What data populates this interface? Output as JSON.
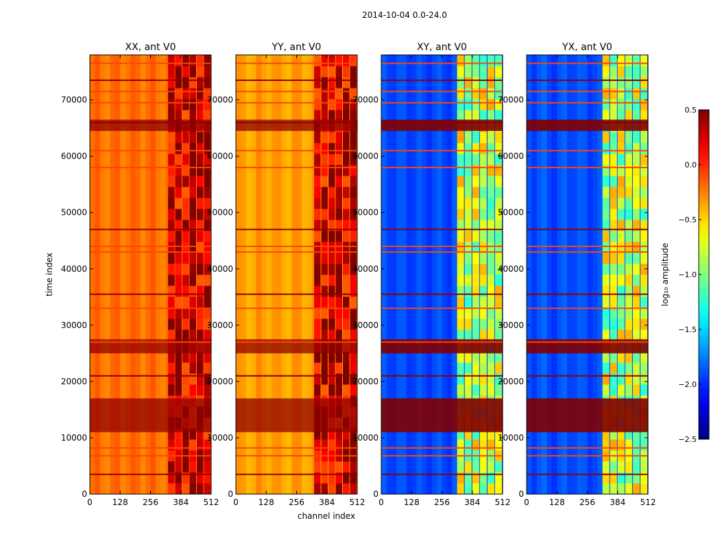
{
  "figure_title": "2014-10-04 0.0-24.0",
  "chart_data": {
    "type": "heatmap",
    "suptitle": "2014-10-04 0.0-24.0",
    "xlabel": "channel index",
    "ylabel": "time index",
    "xlim": [
      0,
      512
    ],
    "ylim": [
      0,
      78000
    ],
    "xticks": [
      0,
      128,
      256,
      384,
      512
    ],
    "yticks": [
      0,
      10000,
      20000,
      30000,
      40000,
      50000,
      60000,
      70000
    ],
    "colorbar": {
      "label": "log₁₀ amplitude",
      "range": [
        -2.5,
        0.5
      ],
      "ticks": [
        0.5,
        0.0,
        -0.5,
        -1.0,
        -1.5,
        -2.0,
        -2.5
      ],
      "tick_labels": [
        "0.5",
        "0.0",
        "−0.5",
        "−1.0",
        "−1.5",
        "−2.0",
        "−2.5"
      ],
      "colormap": "jet"
    },
    "panels": [
      {
        "title": "XX, ant V0",
        "base_level": -0.2,
        "rfi_channels": [
          330,
          512
        ],
        "rfi_level": 0.3
      },
      {
        "title": "YY, ant V0",
        "base_level": -0.35,
        "rfi_channels": [
          330,
          512
        ],
        "rfi_level": 0.3
      },
      {
        "title": "XY, ant V0",
        "base_level": -1.9,
        "rfi_channels": [
          320,
          512
        ],
        "rfi_level": -0.8
      },
      {
        "title": "YX, ant V0",
        "base_level": -1.9,
        "rfi_channels": [
          320,
          512
        ],
        "rfi_level": -0.8
      }
    ],
    "bad_time_ranges": [
      [
        11000,
        17000
      ],
      [
        25000,
        27500
      ],
      [
        64500,
        66500
      ]
    ],
    "flag_times": [
      3500,
      6800,
      8200,
      21000,
      27000,
      33000,
      35500,
      43000,
      44000,
      47000,
      58000,
      61000,
      66000,
      69500,
      71500,
      73500,
      76500
    ]
  }
}
